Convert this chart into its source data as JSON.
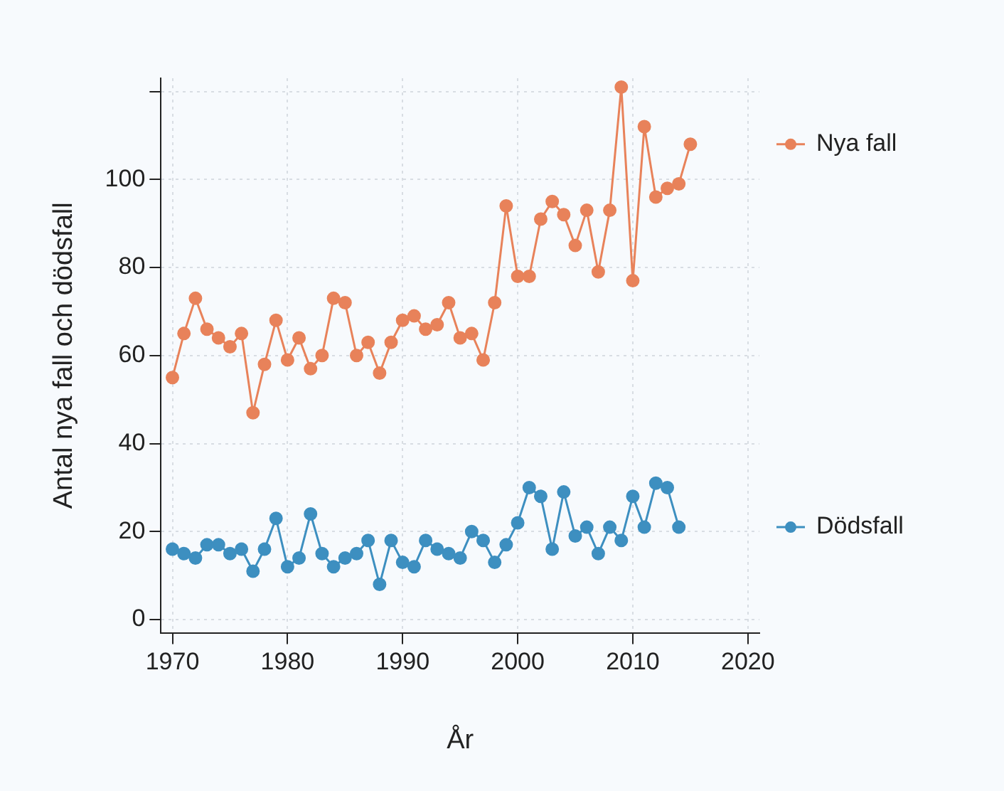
{
  "chart_data": {
    "type": "line",
    "xlabel": "År",
    "ylabel": "Antal nya fall och dödsfall",
    "x": [
      1970,
      1971,
      1972,
      1973,
      1974,
      1975,
      1976,
      1977,
      1978,
      1979,
      1980,
      1981,
      1982,
      1983,
      1984,
      1985,
      1986,
      1987,
      1988,
      1989,
      1990,
      1991,
      1992,
      1993,
      1994,
      1995,
      1996,
      1997,
      1998,
      1999,
      2000,
      2001,
      2002,
      2003,
      2004,
      2005,
      2006,
      2007,
      2008,
      2009,
      2010,
      2011,
      2012,
      2013,
      2014,
      2015
    ],
    "series": [
      {
        "name": "Nya fall",
        "color": "#e8825a",
        "values": [
          55,
          65,
          73,
          66,
          64,
          62,
          65,
          47,
          58,
          68,
          59,
          64,
          57,
          60,
          73,
          72,
          60,
          63,
          56,
          63,
          68,
          69,
          66,
          67,
          72,
          64,
          65,
          59,
          72,
          94,
          78,
          78,
          91,
          95,
          92,
          85,
          93,
          79,
          93,
          121,
          77,
          112,
          96,
          98,
          99,
          108
        ]
      },
      {
        "name": "Dödsfall",
        "color": "#3d8fc0",
        "values": [
          16,
          15,
          14,
          17,
          17,
          15,
          16,
          11,
          16,
          23,
          12,
          14,
          24,
          15,
          12,
          14,
          15,
          18,
          8,
          18,
          13,
          12,
          18,
          16,
          15,
          14,
          20,
          18,
          13,
          17,
          22,
          30,
          28,
          16,
          29,
          19,
          21,
          15,
          21,
          18,
          28,
          21,
          31,
          30,
          21,
          null
        ]
      }
    ],
    "xlim": [
      1969,
      2021
    ],
    "xticks": [
      1970,
      1980,
      1990,
      2000,
      2010,
      2020
    ],
    "ylim": [
      -3,
      123
    ],
    "yticks": [
      0,
      20,
      40,
      60,
      80,
      100,
      {
        "value": 120,
        "label": null
      }
    ],
    "grid": true,
    "legend": "right",
    "marker": "circle",
    "line_style": "solid"
  }
}
